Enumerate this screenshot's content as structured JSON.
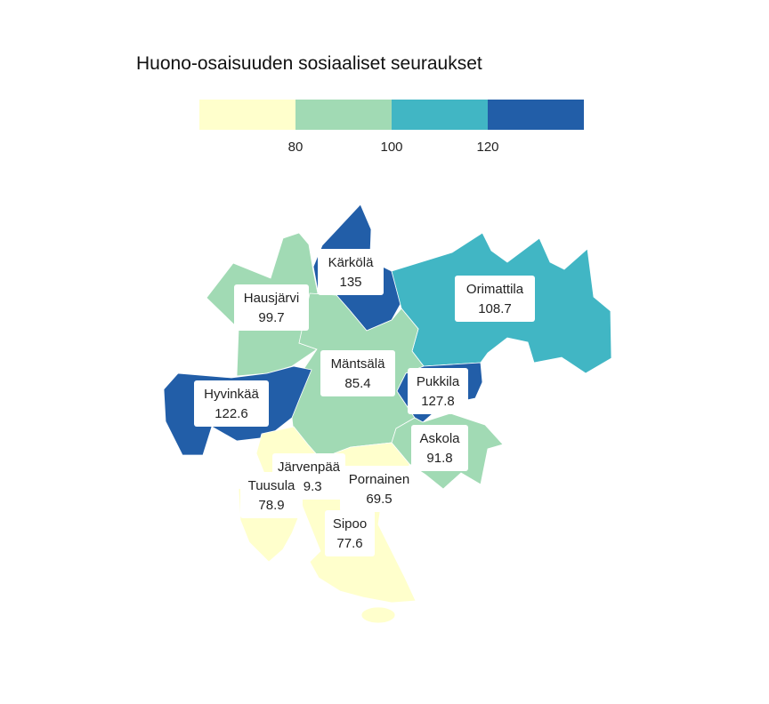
{
  "title": "Huono-osaisuuden sosiaaliset seuraukset",
  "legend": {
    "ticks": [
      "80",
      "100",
      "120"
    ],
    "bins": [
      {
        "color": "#ffffcc"
      },
      {
        "color": "#a1dab4"
      },
      {
        "color": "#41b6c4"
      },
      {
        "color": "#225ea8"
      }
    ]
  },
  "regions": [
    {
      "id": "karkola",
      "name": "Kärkölä",
      "value": "135",
      "color": "#225ea8"
    },
    {
      "id": "hausjarvi",
      "name": "Hausjärvi",
      "value": "99.7",
      "color": "#a1dab4"
    },
    {
      "id": "orimattila",
      "name": "Orimattila",
      "value": "108.7",
      "color": "#41b6c4"
    },
    {
      "id": "mantsala",
      "name": "Mäntsälä",
      "value": "85.4",
      "color": "#a1dab4"
    },
    {
      "id": "pukkila",
      "name": "Pukkila",
      "value": "127.8",
      "color": "#225ea8"
    },
    {
      "id": "hyvinkaa",
      "name": "Hyvinkää",
      "value": "122.6",
      "color": "#225ea8"
    },
    {
      "id": "askola",
      "name": "Askola",
      "value": "91.8",
      "color": "#a1dab4"
    },
    {
      "id": "jarvenpaa",
      "name": "Järvenpää",
      "value": "69.3",
      "color": "#ffffcc"
    },
    {
      "id": "pornainen",
      "name": "Pornainen",
      "value": "69.5",
      "color": "#ffffcc"
    },
    {
      "id": "tuusula",
      "name": "Tuusula",
      "value": "78.9",
      "color": "#ffffcc"
    },
    {
      "id": "sipoo",
      "name": "Sipoo",
      "value": "77.6",
      "color": "#ffffcc"
    }
  ]
}
